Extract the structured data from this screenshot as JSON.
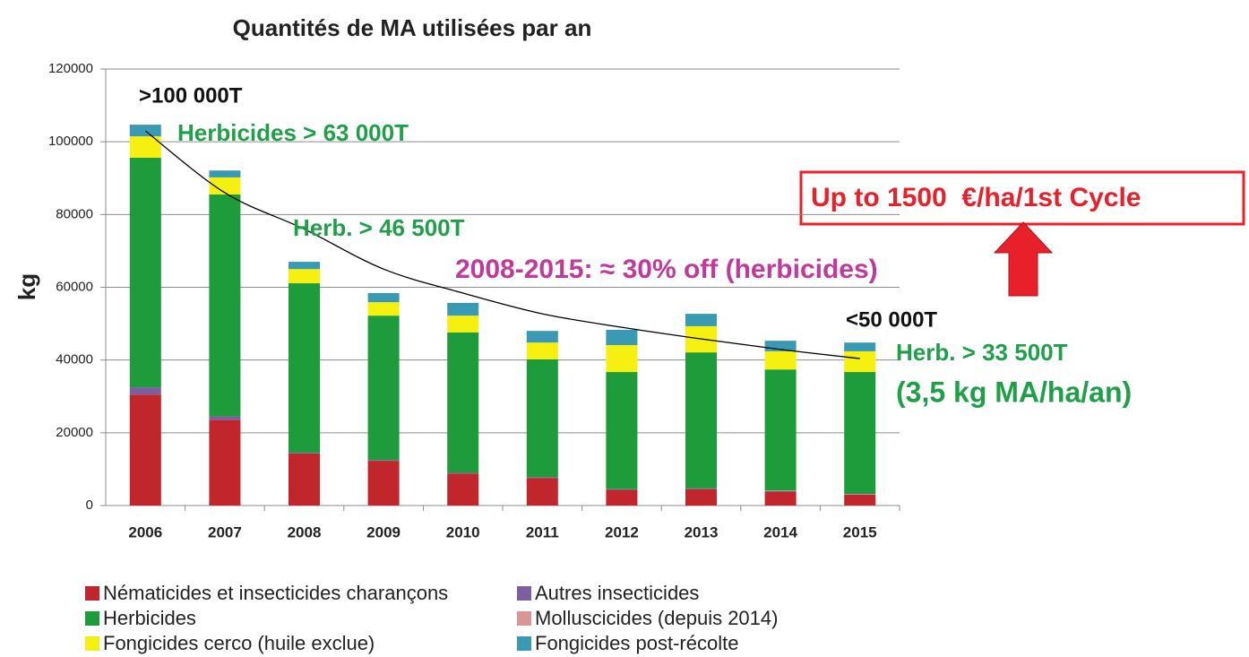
{
  "chart_data": {
    "type": "bar",
    "stacked": true,
    "title": "Quantités de MA utilisées par an",
    "ylabel": "kg",
    "categories": [
      "2006",
      "2007",
      "2008",
      "2009",
      "2010",
      "2011",
      "2012",
      "2013",
      "2014",
      "2015"
    ],
    "series": [
      {
        "name": "Nématicides et insecticides charançons",
        "color": "#c0262b",
        "values": [
          30500,
          23500,
          14300,
          12300,
          8800,
          7600,
          4300,
          4500,
          3800,
          3000
        ]
      },
      {
        "name": "Autres insecticides",
        "color": "#7d5fa0",
        "values": [
          2000,
          1000,
          200,
          200,
          200,
          200,
          200,
          200,
          200,
          100
        ]
      },
      {
        "name": "Molluscicides (depuis 2014)",
        "color": "#d99694",
        "values": [
          0,
          0,
          0,
          0,
          0,
          0,
          0,
          0,
          100,
          100
        ]
      },
      {
        "name": "Herbicides",
        "color": "#1e9c3c",
        "values": [
          63100,
          61000,
          46600,
          39700,
          38600,
          32400,
          32200,
          37400,
          33300,
          33500
        ]
      },
      {
        "name": "Fongicides cerco (huile exclue)",
        "color": "#f5f00f",
        "values": [
          5900,
          4700,
          3900,
          3700,
          4600,
          4600,
          7400,
          7200,
          5000,
          5700
        ]
      },
      {
        "name": "Fongicides post-récolte",
        "color": "#3b9ab3",
        "values": [
          3200,
          1900,
          2000,
          2500,
          3500,
          3200,
          4200,
          3400,
          2900,
          2400
        ]
      }
    ],
    "trendline": {
      "type": "line",
      "color": "#000000",
      "values": [
        103000,
        86000,
        76000,
        65000,
        58400,
        52700,
        49000,
        45800,
        42900,
        40400
      ]
    },
    "ylim": [
      0,
      120000
    ],
    "yticks": [
      0,
      20000,
      40000,
      60000,
      80000,
      100000,
      120000
    ],
    "grid": true,
    "legend": "bottom",
    "annotations": [
      {
        "text": ">100 000T",
        "color": "#111111"
      },
      {
        "text": "Herbicides > 63 000T",
        "color": "#1fa048"
      },
      {
        "text": "Herb. > 46 500T",
        "color": "#1fa048"
      },
      {
        "text": "2008-2015: ≈ 30% off (herbicides)",
        "color": "#c0399c"
      },
      {
        "text": "<50 000T",
        "color": "#111111"
      },
      {
        "text": "Herb. > 33 500T",
        "color": "#1fa048"
      },
      {
        "text": "(3,5 kg MA/ha/an)",
        "color": "#1fa048"
      },
      {
        "text": "Up to 1500  €/ha/1st Cycle",
        "color": "#e8202a"
      }
    ]
  }
}
